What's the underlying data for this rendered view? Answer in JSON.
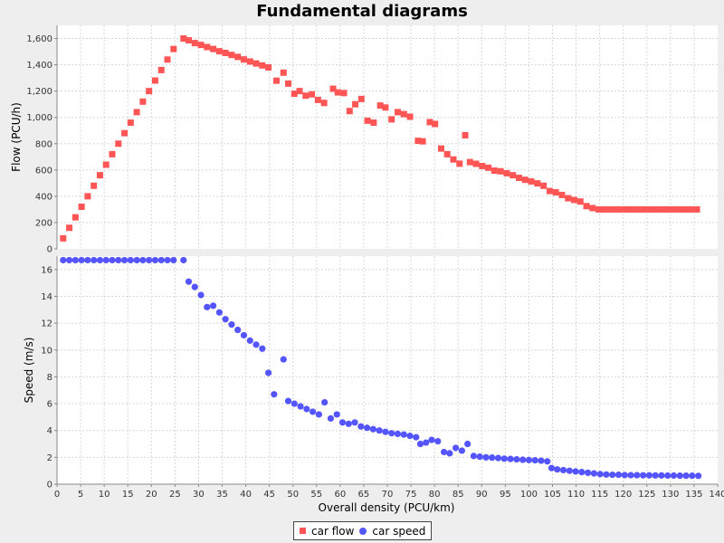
{
  "chart_data": {
    "title": "Fundamental diagrams",
    "type": "scatter",
    "xlabel": "Overall density (PCU/km)",
    "xlim": [
      0,
      140
    ],
    "x_ticks": [
      "0",
      "5",
      "10",
      "15",
      "20",
      "25",
      "30",
      "35",
      "40",
      "45",
      "50",
      "55",
      "60",
      "65",
      "70",
      "75",
      "80",
      "85",
      "90",
      "95",
      "100",
      "105",
      "110",
      "115",
      "120",
      "125",
      "130",
      "135",
      "140"
    ],
    "grid": true,
    "legend_position": "bottom",
    "colors": {
      "flow": "#ff5555",
      "speed": "#5555ff"
    },
    "subplots": [
      {
        "ylabel": "Flow (PCU/h)",
        "ylim": [
          0,
          1700
        ],
        "y_ticks": [
          "0",
          "200",
          "400",
          "600",
          "800",
          "1,000",
          "1,200",
          "1,400",
          "1,600"
        ],
        "series": [
          {
            "name": "car flow",
            "marker": "square",
            "points": [
              [
                1.3,
                80
              ],
              [
                2.6,
                160
              ],
              [
                3.9,
                240
              ],
              [
                5.2,
                320
              ],
              [
                6.5,
                400
              ],
              [
                7.8,
                480
              ],
              [
                9.1,
                560
              ],
              [
                10.4,
                640
              ],
              [
                11.7,
                720
              ],
              [
                13.0,
                800
              ],
              [
                14.3,
                880
              ],
              [
                15.6,
                960
              ],
              [
                16.9,
                1040
              ],
              [
                18.2,
                1120
              ],
              [
                19.5,
                1200
              ],
              [
                20.8,
                1280
              ],
              [
                22.1,
                1360
              ],
              [
                23.4,
                1440
              ],
              [
                24.7,
                1520
              ],
              [
                26.8,
                1600
              ],
              [
                27.9,
                1586
              ],
              [
                29.2,
                1565
              ],
              [
                30.5,
                1551
              ],
              [
                31.8,
                1535
              ],
              [
                33.1,
                1520
              ],
              [
                34.4,
                1503
              ],
              [
                35.7,
                1490
              ],
              [
                37.0,
                1475
              ],
              [
                38.3,
                1460
              ],
              [
                39.6,
                1441
              ],
              [
                40.9,
                1425
              ],
              [
                42.2,
                1410
              ],
              [
                43.5,
                1395
              ],
              [
                44.8,
                1380
              ],
              [
                46.5,
                1279
              ],
              [
                48.0,
                1340
              ],
              [
                49.0,
                1257
              ],
              [
                50.3,
                1180
              ],
              [
                51.4,
                1200
              ],
              [
                52.7,
                1165
              ],
              [
                54.0,
                1175
              ],
              [
                55.3,
                1133
              ],
              [
                56.6,
                1110
              ],
              [
                58.5,
                1218
              ],
              [
                59.5,
                1190
              ],
              [
                60.8,
                1185
              ],
              [
                62.0,
                1048
              ],
              [
                63.2,
                1100
              ],
              [
                64.5,
                1140
              ],
              [
                65.8,
                975
              ],
              [
                67.1,
                960
              ],
              [
                68.5,
                1090
              ],
              [
                69.6,
                1075
              ],
              [
                70.9,
                985
              ],
              [
                72.2,
                1040
              ],
              [
                73.5,
                1025
              ],
              [
                74.8,
                1005
              ],
              [
                76.5,
                822
              ],
              [
                77.5,
                818
              ],
              [
                79.0,
                964
              ],
              [
                80.1,
                950
              ],
              [
                81.4,
                763
              ],
              [
                82.7,
                720
              ],
              [
                84.0,
                680
              ],
              [
                85.3,
                648
              ],
              [
                86.5,
                864
              ],
              [
                87.5,
                660
              ],
              [
                88.8,
                647
              ],
              [
                90.1,
                630
              ],
              [
                91.4,
                617
              ],
              [
                92.7,
                595
              ],
              [
                94.0,
                590
              ],
              [
                95.3,
                575
              ],
              [
                96.6,
                560
              ],
              [
                97.9,
                540
              ],
              [
                99.2,
                525
              ],
              [
                100.5,
                513
              ],
              [
                101.8,
                498
              ],
              [
                103.1,
                480
              ],
              [
                104.4,
                440
              ],
              [
                105.7,
                430
              ],
              [
                107.0,
                410
              ],
              [
                108.3,
                385
              ],
              [
                109.6,
                372
              ],
              [
                110.9,
                360
              ],
              [
                112.2,
                325
              ],
              [
                113.5,
                310
              ],
              [
                114.8,
                300
              ],
              [
                116.1,
                300
              ],
              [
                117.4,
                300
              ],
              [
                118.7,
                300
              ],
              [
                120.0,
                300
              ],
              [
                121.3,
                300
              ],
              [
                122.6,
                300
              ],
              [
                123.9,
                300
              ],
              [
                125.2,
                300
              ],
              [
                126.5,
                300
              ],
              [
                127.8,
                300
              ],
              [
                129.1,
                300
              ],
              [
                130.4,
                300
              ],
              [
                131.7,
                300
              ],
              [
                133.0,
                300
              ],
              [
                134.3,
                300
              ],
              [
                135.6,
                300
              ]
            ]
          }
        ]
      },
      {
        "ylabel": "Speed (m/s)",
        "ylim": [
          0,
          17
        ],
        "y_ticks": [
          "0",
          "2",
          "4",
          "6",
          "8",
          "10",
          "12",
          "14",
          "16"
        ],
        "series": [
          {
            "name": "car speed",
            "marker": "circle",
            "points": [
              [
                1.3,
                16.7
              ],
              [
                2.6,
                16.7
              ],
              [
                3.9,
                16.7
              ],
              [
                5.2,
                16.7
              ],
              [
                6.5,
                16.7
              ],
              [
                7.8,
                16.7
              ],
              [
                9.1,
                16.7
              ],
              [
                10.4,
                16.7
              ],
              [
                11.7,
                16.7
              ],
              [
                13.0,
                16.7
              ],
              [
                14.3,
                16.7
              ],
              [
                15.6,
                16.7
              ],
              [
                16.9,
                16.7
              ],
              [
                18.2,
                16.7
              ],
              [
                19.5,
                16.7
              ],
              [
                20.8,
                16.7
              ],
              [
                22.1,
                16.7
              ],
              [
                23.4,
                16.7
              ],
              [
                24.7,
                16.7
              ],
              [
                26.8,
                16.7
              ],
              [
                27.9,
                15.1
              ],
              [
                29.2,
                14.7
              ],
              [
                30.5,
                14.1
              ],
              [
                31.8,
                13.2
              ],
              [
                33.1,
                13.3
              ],
              [
                34.4,
                12.8
              ],
              [
                35.7,
                12.3
              ],
              [
                37.0,
                11.9
              ],
              [
                38.3,
                11.5
              ],
              [
                39.6,
                11.1
              ],
              [
                40.9,
                10.7
              ],
              [
                42.2,
                10.4
              ],
              [
                43.5,
                10.1
              ],
              [
                44.8,
                8.3
              ],
              [
                46.0,
                6.7
              ],
              [
                48.0,
                9.3
              ],
              [
                49.0,
                6.2
              ],
              [
                50.3,
                6.0
              ],
              [
                51.6,
                5.8
              ],
              [
                52.9,
                5.6
              ],
              [
                54.2,
                5.4
              ],
              [
                55.5,
                5.2
              ],
              [
                56.7,
                6.1
              ],
              [
                58.0,
                4.9
              ],
              [
                59.3,
                5.2
              ],
              [
                60.5,
                4.6
              ],
              [
                61.8,
                4.5
              ],
              [
                63.1,
                4.6
              ],
              [
                64.4,
                4.3
              ],
              [
                65.7,
                4.2
              ],
              [
                67.0,
                4.1
              ],
              [
                68.3,
                4.0
              ],
              [
                69.6,
                3.9
              ],
              [
                70.9,
                3.8
              ],
              [
                72.2,
                3.75
              ],
              [
                73.5,
                3.7
              ],
              [
                74.8,
                3.6
              ],
              [
                76.1,
                3.5
              ],
              [
                77.0,
                3.0
              ],
              [
                78.2,
                3.1
              ],
              [
                79.4,
                3.3
              ],
              [
                80.7,
                3.2
              ],
              [
                82.0,
                2.4
              ],
              [
                83.2,
                2.3
              ],
              [
                84.5,
                2.7
              ],
              [
                85.8,
                2.5
              ],
              [
                87.0,
                3.0
              ],
              [
                88.3,
                2.1
              ],
              [
                89.6,
                2.05
              ],
              [
                90.9,
                2.0
              ],
              [
                92.2,
                1.98
              ],
              [
                93.5,
                1.95
              ],
              [
                94.8,
                1.9
              ],
              [
                96.1,
                1.88
              ],
              [
                97.4,
                1.85
              ],
              [
                98.7,
                1.82
              ],
              [
                100.0,
                1.8
              ],
              [
                101.3,
                1.78
              ],
              [
                102.6,
                1.75
              ],
              [
                103.9,
                1.7
              ],
              [
                104.8,
                1.2
              ],
              [
                106.0,
                1.1
              ],
              [
                107.3,
                1.05
              ],
              [
                108.6,
                1.0
              ],
              [
                109.9,
                0.95
              ],
              [
                111.2,
                0.9
              ],
              [
                112.5,
                0.85
              ],
              [
                113.8,
                0.8
              ],
              [
                115.1,
                0.75
              ],
              [
                116.4,
                0.72
              ],
              [
                117.7,
                0.7
              ],
              [
                119.0,
                0.7
              ],
              [
                120.3,
                0.68
              ],
              [
                121.6,
                0.67
              ],
              [
                122.9,
                0.67
              ],
              [
                124.2,
                0.66
              ],
              [
                125.5,
                0.66
              ],
              [
                126.8,
                0.65
              ],
              [
                128.1,
                0.65
              ],
              [
                129.4,
                0.64
              ],
              [
                130.7,
                0.64
              ],
              [
                132.0,
                0.63
              ],
              [
                133.3,
                0.63
              ],
              [
                134.6,
                0.63
              ],
              [
                135.9,
                0.62
              ]
            ]
          }
        ]
      }
    ]
  }
}
